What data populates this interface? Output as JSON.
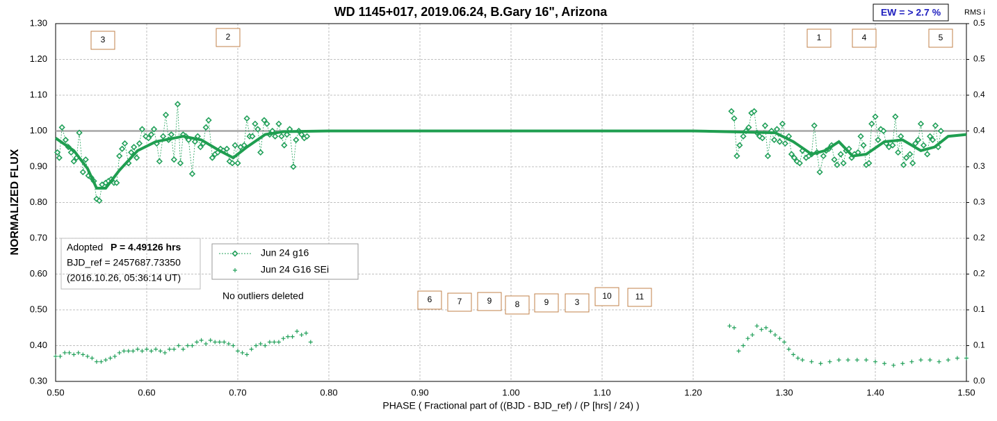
{
  "chart_data": {
    "type": "scatter",
    "title": "WD 1145+017, 2019.06.24, B.Gary 16\", Arizona",
    "xlabel": "PHASE ( Fractional part of ((BJD - BJD_ref) / (P [hrs] / 24) )",
    "ylabel": "NORMALIZED FLUX",
    "y2label": "RMS i",
    "xlim": [
      0.5,
      1.5
    ],
    "ylim": [
      0.3,
      1.3
    ],
    "y2lim": [
      0,
      0.5
    ],
    "grid": true,
    "legend": "center-left",
    "xticks": [
      {
        "value": 0.5,
        "label": "0.50"
      },
      {
        "value": 0.6,
        "label": "0.60"
      },
      {
        "value": 0.7,
        "label": "0.70"
      },
      {
        "value": 0.8,
        "label": "0.80"
      },
      {
        "value": 0.9,
        "label": "0.90"
      },
      {
        "value": 1.0,
        "label": "1.00"
      },
      {
        "value": 1.1,
        "label": "1.10"
      },
      {
        "value": 1.2,
        "label": "1.20"
      },
      {
        "value": 1.3,
        "label": "1.30"
      },
      {
        "value": 1.4,
        "label": "1.40"
      },
      {
        "value": 1.5,
        "label": "1.50"
      }
    ],
    "yticks": [
      {
        "value": 0.3,
        "label": "0.30"
      },
      {
        "value": 0.4,
        "label": "0.40"
      },
      {
        "value": 0.5,
        "label": "0.50"
      },
      {
        "value": 0.6,
        "label": "0.60"
      },
      {
        "value": 0.7,
        "label": "0.70"
      },
      {
        "value": 0.8,
        "label": "0.80"
      },
      {
        "value": 0.9,
        "label": "0.90"
      },
      {
        "value": 1.0,
        "label": "1.00"
      },
      {
        "value": 1.1,
        "label": "1.10"
      },
      {
        "value": 1.2,
        "label": "1.20"
      },
      {
        "value": 1.3,
        "label": "1.30"
      }
    ],
    "y2ticks": [
      {
        "value": 0,
        "label": "0.0"
      },
      {
        "value": 0.05,
        "label": "0.1"
      },
      {
        "value": 0.1,
        "label": "0.1"
      },
      {
        "value": 0.15,
        "label": "0.2"
      },
      {
        "value": 0.2,
        "label": "0.2"
      },
      {
        "value": 0.25,
        "label": "0.3"
      },
      {
        "value": 0.3,
        "label": "0.3"
      },
      {
        "value": 0.35,
        "label": "0.4"
      },
      {
        "value": 0.4,
        "label": "0.4"
      },
      {
        "value": 0.45,
        "label": "0.5"
      },
      {
        "value": 0.5,
        "label": "0.5"
      }
    ],
    "series": [
      {
        "color": "#a6a6a6",
        "marker": "line",
        "x": [
          0.5,
          1.5
        ],
        "values": [
          1.0,
          1.0
        ]
      },
      {
        "name": "Jun 24 g16",
        "color": "#22a05a",
        "marker": "diamond",
        "x": [
          0.502,
          0.504,
          0.507,
          0.511,
          0.514,
          0.517,
          0.52,
          0.523,
          0.526,
          0.53,
          0.533,
          0.536,
          0.539,
          0.542,
          0.545,
          0.548,
          0.551,
          0.555,
          0.558,
          0.561,
          0.564,
          0.567,
          0.57,
          0.573,
          0.576,
          0.58,
          0.583,
          0.586,
          0.589,
          0.592,
          0.595,
          0.599,
          0.602,
          0.605,
          0.608,
          0.611,
          0.614,
          0.618,
          0.621,
          0.624,
          0.627,
          0.63,
          0.634,
          0.637,
          0.64,
          0.643,
          0.646,
          0.65,
          0.653,
          0.656,
          0.659,
          0.662,
          0.665,
          0.668,
          0.672,
          0.675,
          0.678,
          0.681,
          0.684,
          0.688,
          0.691,
          0.694,
          0.697,
          0.7,
          0.703,
          0.707,
          0.71,
          0.713,
          0.716,
          0.719,
          0.722,
          0.725,
          0.729,
          0.732,
          0.735,
          0.738,
          0.741,
          0.745,
          0.748,
          0.751,
          0.754,
          0.757,
          0.761,
          0.764,
          0.767,
          0.77,
          0.773,
          0.776,
          1.0,
          1.242,
          1.245,
          1.248,
          1.251,
          1.255,
          1.258,
          1.261,
          1.264,
          1.267,
          1.27,
          1.273,
          1.276,
          1.279,
          1.282,
          1.286,
          1.289,
          1.292,
          1.295,
          1.298,
          1.301,
          1.305,
          1.308,
          1.311,
          1.314,
          1.317,
          1.32,
          1.324,
          1.327,
          1.33,
          1.333,
          1.336,
          1.339,
          1.343,
          1.346,
          1.349,
          1.352,
          1.355,
          1.358,
          1.362,
          1.365,
          1.368,
          1.371,
          1.374,
          1.377,
          1.381,
          1.384,
          1.387,
          1.39,
          1.393,
          1.396,
          1.4,
          1.403,
          1.406,
          1.409,
          1.412,
          1.415,
          1.419,
          1.422,
          1.425,
          1.428,
          1.431,
          1.434,
          1.438,
          1.441,
          1.444,
          1.447,
          1.45,
          1.453,
          1.457,
          1.46,
          1.463,
          1.466,
          1.469,
          1.472
        ],
        "values": [
          0.94,
          0.925,
          1.01,
          0.975,
          0.955,
          0.94,
          0.915,
          0.925,
          0.995,
          0.885,
          0.92,
          0.875,
          0.87,
          0.86,
          0.81,
          0.805,
          0.85,
          0.855,
          0.86,
          0.865,
          0.855,
          0.855,
          0.93,
          0.95,
          0.965,
          0.91,
          0.94,
          0.955,
          0.925,
          0.965,
          1.005,
          0.985,
          0.98,
          0.99,
          1.005,
          0.965,
          0.915,
          0.985,
          1.045,
          0.975,
          0.99,
          0.92,
          1.075,
          0.91,
          0.99,
          0.985,
          0.975,
          0.88,
          0.97,
          0.985,
          0.955,
          0.965,
          1.01,
          1.03,
          0.925,
          0.935,
          0.94,
          0.95,
          0.945,
          0.95,
          0.915,
          0.91,
          0.96,
          0.91,
          0.955,
          0.96,
          1.035,
          0.985,
          0.985,
          1.02,
          1.005,
          0.94,
          1.03,
          1.02,
          0.99,
          1.0,
          0.985,
          1.02,
          0.985,
          0.96,
          0.99,
          1.005,
          0.9,
          0.975,
          1.0,
          0.99,
          0.98,
          0.985,
          null,
          1.055,
          1.035,
          0.93,
          0.96,
          0.985,
          1.0,
          1.01,
          1.05,
          1.055,
          0.995,
          0.985,
          0.98,
          1.015,
          0.93,
          1.0,
          0.975,
          1.005,
          0.97,
          1.02,
          0.965,
          0.985,
          0.935,
          0.925,
          0.915,
          0.91,
          0.945,
          0.925,
          0.93,
          0.935,
          1.015,
          0.94,
          0.885,
          0.93,
          0.945,
          0.95,
          0.96,
          0.92,
          0.905,
          0.935,
          0.91,
          0.945,
          0.95,
          0.925,
          0.935,
          0.94,
          0.985,
          0.96,
          0.905,
          0.91,
          1.02,
          1.04,
          0.975,
          1.005,
          1.0,
          0.965,
          0.955,
          0.96,
          1.04,
          0.94,
          0.985,
          0.905,
          0.925,
          0.935,
          0.91,
          0.965,
          0.975,
          1.02,
          0.96,
          0.935,
          0.985,
          0.975,
          1.015,
          0.955,
          1.0
        ]
      },
      {
        "color": "#1f9e50",
        "marker": "line",
        "width": 4,
        "x": [
          0.5,
          0.52,
          0.535,
          0.545,
          0.555,
          0.57,
          0.59,
          0.61,
          0.64,
          0.66,
          0.68,
          0.695,
          0.71,
          0.73,
          0.75,
          0.8,
          1.2,
          1.29,
          1.31,
          1.33,
          1.345,
          1.36,
          1.375,
          1.39,
          1.41,
          1.43,
          1.45,
          1.465,
          1.48,
          1.5
        ],
        "values": [
          0.98,
          0.945,
          0.895,
          0.84,
          0.84,
          0.89,
          0.945,
          0.97,
          0.985,
          0.975,
          0.945,
          0.925,
          0.955,
          0.99,
          0.998,
          1.0,
          1.0,
          0.995,
          0.97,
          0.935,
          0.945,
          0.97,
          0.93,
          0.935,
          0.97,
          0.975,
          0.945,
          0.955,
          0.985,
          0.99
        ]
      },
      {
        "name": "Jun 24 G16 SEi",
        "color": "#22a05a",
        "marker": "plus",
        "x": [
          0.5,
          0.505,
          0.51,
          0.515,
          0.52,
          0.525,
          0.53,
          0.535,
          0.54,
          0.545,
          0.55,
          0.555,
          0.56,
          0.565,
          0.57,
          0.575,
          0.58,
          0.585,
          0.59,
          0.595,
          0.6,
          0.605,
          0.61,
          0.615,
          0.62,
          0.625,
          0.63,
          0.635,
          0.64,
          0.645,
          0.65,
          0.655,
          0.66,
          0.665,
          0.67,
          0.675,
          0.68,
          0.685,
          0.69,
          0.695,
          0.7,
          0.705,
          0.71,
          0.715,
          0.72,
          0.725,
          0.73,
          0.735,
          0.74,
          0.745,
          0.75,
          0.755,
          0.76,
          0.765,
          0.77,
          0.775,
          0.78,
          1.24,
          1.245,
          1.25,
          1.255,
          1.26,
          1.265,
          1.27,
          1.275,
          1.28,
          1.285,
          1.29,
          1.295,
          1.3,
          1.305,
          1.31,
          1.315,
          1.32,
          1.33,
          1.34,
          1.35,
          1.36,
          1.37,
          1.38,
          1.39,
          1.4,
          1.41,
          1.42,
          1.43,
          1.44,
          1.45,
          1.46,
          1.47,
          1.48,
          1.49,
          1.5
        ],
        "values": [
          0.37,
          0.37,
          0.38,
          0.38,
          0.375,
          0.38,
          0.375,
          0.37,
          0.365,
          0.355,
          0.355,
          0.36,
          0.365,
          0.37,
          0.38,
          0.385,
          0.385,
          0.385,
          0.39,
          0.385,
          0.39,
          0.385,
          0.39,
          0.385,
          0.38,
          0.39,
          0.39,
          0.4,
          0.39,
          0.4,
          0.4,
          0.41,
          0.415,
          0.405,
          0.415,
          0.41,
          0.41,
          0.41,
          0.405,
          0.4,
          0.385,
          0.38,
          0.375,
          0.39,
          0.4,
          0.405,
          0.4,
          0.41,
          0.41,
          0.41,
          0.42,
          0.425,
          0.425,
          0.44,
          0.43,
          0.435,
          0.41,
          0.455,
          0.45,
          0.385,
          0.4,
          0.42,
          0.43,
          0.455,
          0.445,
          0.45,
          0.44,
          0.43,
          0.42,
          0.41,
          0.39,
          0.375,
          0.365,
          0.36,
          0.355,
          0.35,
          0.355,
          0.36,
          0.36,
          0.36,
          0.36,
          0.355,
          0.35,
          0.345,
          0.35,
          0.355,
          0.36,
          0.36,
          0.355,
          0.36,
          0.365,
          0.365
        ]
      }
    ],
    "ew_label": "EW = > 2.7 %",
    "info": {
      "adopted": "Adopted",
      "period": "P = 4.49126 hrs",
      "bjd": "BJD_ref = 2457687.73350",
      "date": "(2016.10.26, 05:36:14 UT)"
    },
    "note": "No outliers deleted",
    "annotations": [
      "3",
      "2",
      "1",
      "4",
      "5",
      "6",
      "7",
      "9",
      "8",
      "9",
      "3",
      "10",
      "11"
    ]
  }
}
